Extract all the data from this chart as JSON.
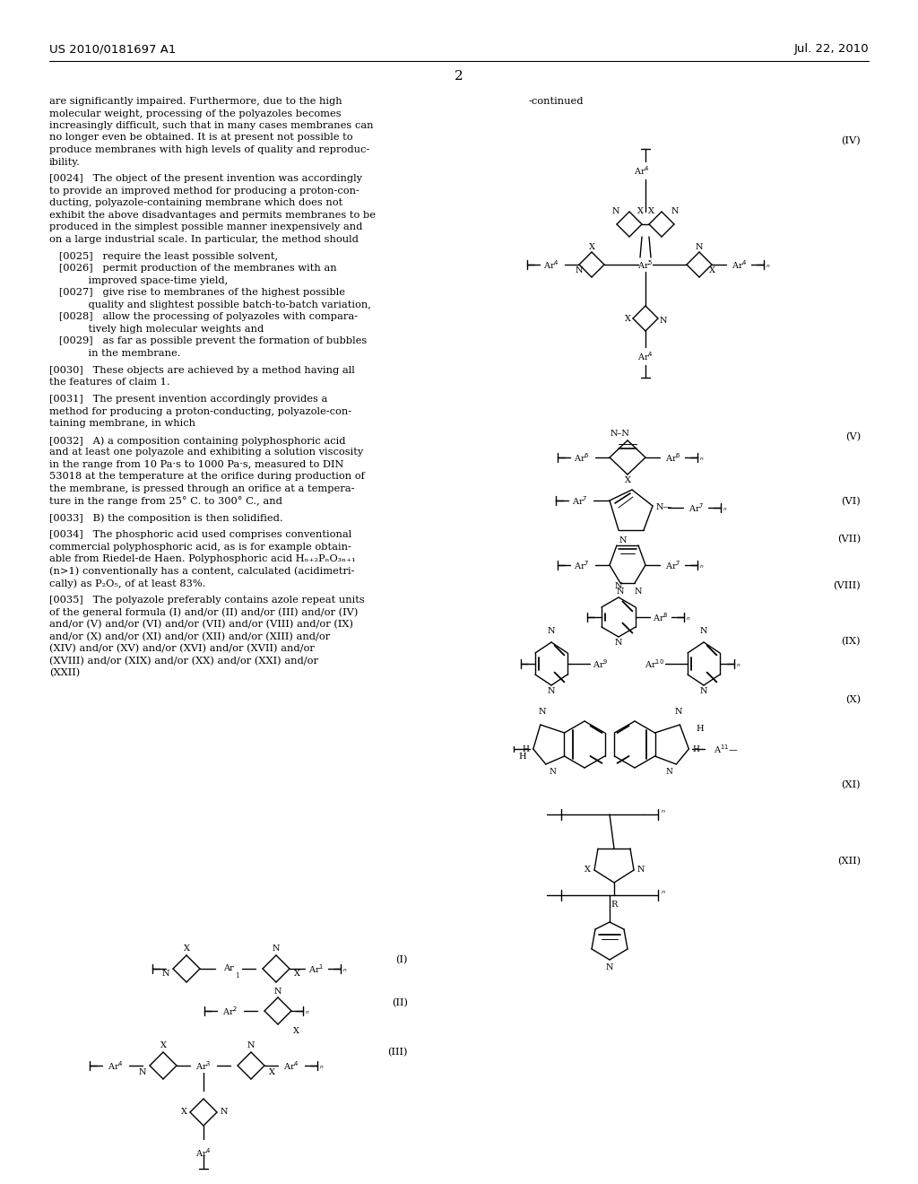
{
  "page_header_left": "US 2010/0181697 A1",
  "page_header_right": "Jul. 22, 2010",
  "page_number": "2",
  "background_color": "#ffffff",
  "text_color": "#000000"
}
